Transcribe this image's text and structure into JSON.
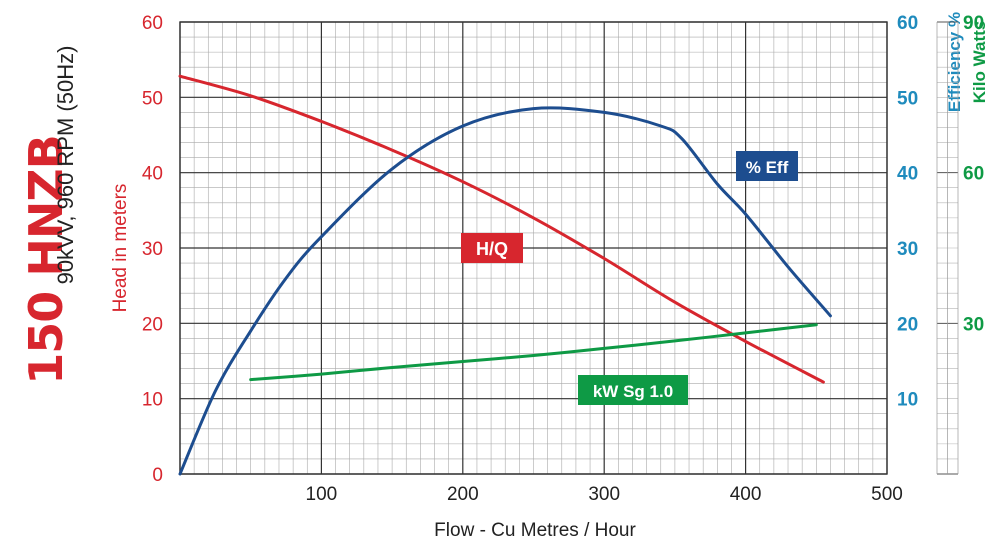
{
  "title": {
    "model": "150 HNZB",
    "spec": "90kVV, 960 RPM (50Hz)"
  },
  "colors": {
    "head": "#d7262e",
    "eff": "#1d4d8f",
    "kw": "#0e9a45",
    "eff_axis": "#1f8bbd",
    "kw_axis": "#0e9a45"
  },
  "chart_data": {
    "type": "line",
    "xlabel": "Flow - Cu Metres / Hour",
    "x_ticks": [
      "100",
      "200",
      "300",
      "400",
      "500"
    ],
    "xlim": [
      0,
      500
    ],
    "y_left": {
      "label": "Head in meters",
      "ticks": [
        "0",
        "10",
        "20",
        "30",
        "40",
        "50",
        "60"
      ],
      "lim": [
        0,
        60
      ]
    },
    "y_right_eff": {
      "label": "Efficiency %",
      "ticks": [
        "10",
        "20",
        "30",
        "40",
        "50",
        "60"
      ],
      "lim": [
        0,
        60
      ]
    },
    "y_right_kw": {
      "label": "Kilo Watts",
      "ticks": [
        "30",
        "60",
        "90"
      ],
      "lim": [
        0,
        90
      ]
    },
    "grid": true,
    "series": [
      {
        "name": "H/Q",
        "axis": "head",
        "x": [
          0,
          50,
          100,
          150,
          200,
          250,
          300,
          350,
          400,
          455
        ],
        "y": [
          52.8,
          50.2,
          46.8,
          43.0,
          38.8,
          34.0,
          28.6,
          22.8,
          17.6,
          12.2
        ]
      },
      {
        "name": "% Eff",
        "axis": "eff",
        "x": [
          0,
          25,
          50,
          75,
          100,
          150,
          200,
          250,
          300,
          340,
          355,
          380,
          400,
          430,
          460
        ],
        "y": [
          0,
          11,
          19,
          26,
          31.5,
          40.5,
          46.2,
          48.5,
          48.0,
          46.2,
          44.5,
          38.5,
          34.5,
          27.5,
          21.0
        ]
      },
      {
        "name": "kW Sg 1.0",
        "axis": "kw",
        "x": [
          50,
          100,
          150,
          200,
          250,
          300,
          350,
          400,
          450
        ],
        "y": [
          18.8,
          19.9,
          21.2,
          22.4,
          23.6,
          25.0,
          26.5,
          28.1,
          29.7
        ]
      }
    ]
  }
}
